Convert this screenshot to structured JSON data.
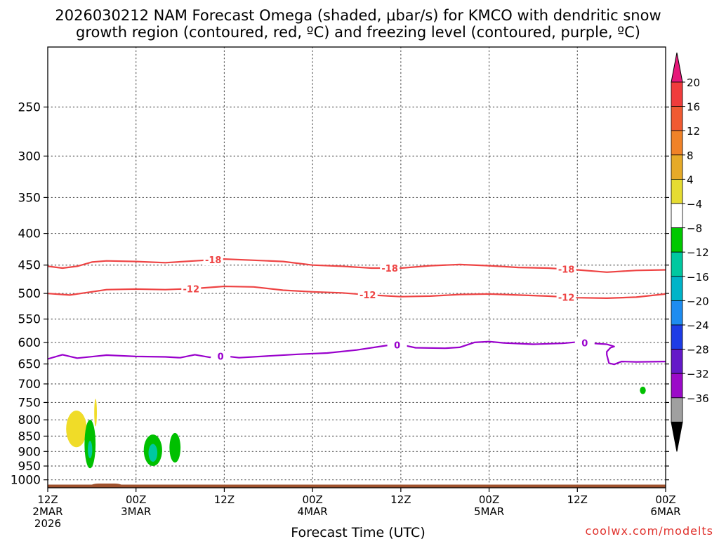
{
  "chart_data": {
    "type": "time-height contour/shaded",
    "title_line1": "2026030212 NAM Forecast Omega (shaded, μbar/s) for KMCO with dendritic snow",
    "title_line2": "growth region (contoured, red, ºC) and freezing level (contoured, purple, ºC)",
    "xlabel": "Forecast Time (UTC)",
    "watermark": "coolwx.com/modelts",
    "y_axis": {
      "units": "hPa",
      "scale": "log-pressure",
      "range": [
        1030,
        200
      ],
      "ticks": [
        250,
        300,
        350,
        400,
        450,
        500,
        550,
        600,
        650,
        700,
        750,
        800,
        850,
        900,
        950,
        1000
      ]
    },
    "x_axis": {
      "units": "forecast hour",
      "range": [
        0,
        84
      ],
      "ticks": [
        {
          "hour": 0,
          "line1": "12Z",
          "line2": "2MAR",
          "line3": "2026"
        },
        {
          "hour": 12,
          "line1": "00Z",
          "line2": "3MAR",
          "line3": ""
        },
        {
          "hour": 24,
          "line1": "12Z",
          "line2": "",
          "line3": ""
        },
        {
          "hour": 36,
          "line1": "00Z",
          "line2": "4MAR",
          "line3": ""
        },
        {
          "hour": 48,
          "line1": "12Z",
          "line2": "",
          "line3": ""
        },
        {
          "hour": 60,
          "line1": "00Z",
          "line2": "5MAR",
          "line3": ""
        },
        {
          "hour": 72,
          "line1": "12Z",
          "line2": "",
          "line3": ""
        },
        {
          "hour": 84,
          "line1": "00Z",
          "line2": "6MAR",
          "line3": ""
        }
      ]
    },
    "contours": [
      {
        "name": "temperature -18C",
        "label": "-18",
        "color": "#ee4444",
        "label_hours": [
          22.5,
          46.5,
          70.5
        ],
        "points": [
          [
            0,
            452
          ],
          [
            2,
            455
          ],
          [
            4,
            452
          ],
          [
            6,
            445
          ],
          [
            8,
            443
          ],
          [
            12,
            444
          ],
          [
            16,
            446
          ],
          [
            20,
            443
          ],
          [
            24,
            440
          ],
          [
            28,
            442
          ],
          [
            32,
            444
          ],
          [
            36,
            450
          ],
          [
            40,
            452
          ],
          [
            44,
            455
          ],
          [
            48,
            455
          ],
          [
            52,
            451
          ],
          [
            56,
            449
          ],
          [
            60,
            451
          ],
          [
            64,
            454
          ],
          [
            68,
            455
          ],
          [
            72,
            458
          ],
          [
            76,
            462
          ],
          [
            80,
            459
          ],
          [
            84,
            458
          ]
        ]
      },
      {
        "name": "temperature -12C",
        "label": "-12",
        "color": "#ee4444",
        "label_hours": [
          19.5,
          43.5,
          70.5
        ],
        "points": [
          [
            0,
            500
          ],
          [
            3,
            503
          ],
          [
            5,
            499
          ],
          [
            8,
            493
          ],
          [
            12,
            492
          ],
          [
            16,
            493
          ],
          [
            20,
            491
          ],
          [
            24,
            487
          ],
          [
            28,
            488
          ],
          [
            32,
            494
          ],
          [
            36,
            497
          ],
          [
            40,
            499
          ],
          [
            44,
            503
          ],
          [
            48,
            506
          ],
          [
            52,
            505
          ],
          [
            56,
            502
          ],
          [
            60,
            501
          ],
          [
            64,
            503
          ],
          [
            68,
            505
          ],
          [
            72,
            508
          ],
          [
            76,
            509
          ],
          [
            80,
            507
          ],
          [
            84,
            501
          ]
        ]
      },
      {
        "name": "freezing level 0C",
        "label": "0",
        "color": "#9900cc",
        "label_hours": [
          23.5,
          47.5,
          73.0
        ],
        "points": [
          [
            0,
            638
          ],
          [
            2,
            628
          ],
          [
            4,
            636
          ],
          [
            8,
            629
          ],
          [
            12,
            632
          ],
          [
            16,
            633
          ],
          [
            18,
            635
          ],
          [
            20,
            628
          ],
          [
            22,
            634
          ],
          [
            24,
            631
          ],
          [
            26,
            635
          ],
          [
            30,
            631
          ],
          [
            34,
            627
          ],
          [
            38,
            624
          ],
          [
            42,
            617
          ],
          [
            46,
            607
          ],
          [
            48,
            605
          ],
          [
            50,
            612
          ],
          [
            54,
            613
          ],
          [
            56,
            611
          ],
          [
            58,
            600
          ],
          [
            60,
            598
          ],
          [
            62,
            601
          ],
          [
            66,
            604
          ],
          [
            70,
            602
          ],
          [
            72,
            599
          ],
          [
            74,
            602
          ],
          [
            76,
            604
          ],
          [
            77,
            609
          ],
          [
            76.5,
            612
          ],
          [
            76,
            621
          ],
          [
            76,
            628
          ],
          [
            76.3,
            648
          ],
          [
            77,
            651
          ],
          [
            78,
            644
          ],
          [
            80,
            645
          ],
          [
            84,
            644
          ]
        ]
      }
    ],
    "omega_areas": [
      {
        "color": "#f0dc28",
        "hour": 3.9,
        "p": 818,
        "dh": 1.4,
        "dp_top": 45,
        "dp_bot": 68
      },
      {
        "color": "#f0dc28",
        "hour": 6.5,
        "p": 790,
        "dh": 0.18,
        "dp_top": 50,
        "dp_bot": 30
      },
      {
        "color": "#00c000",
        "hour": 5.75,
        "p": 898,
        "dh": 0.75,
        "dp_top": 98,
        "dp_bot": 60
      },
      {
        "color": "#00c8a0",
        "hour": 5.75,
        "p": 893,
        "dh": 0.3,
        "dp_top": 28,
        "dp_bot": 30
      },
      {
        "color": "#00c000",
        "hour": 14.3,
        "p": 900,
        "dh": 1.25,
        "dp_top": 55,
        "dp_bot": 50
      },
      {
        "color": "#00c8a0",
        "hour": 14.3,
        "p": 905,
        "dh": 0.6,
        "dp_top": 30,
        "dp_bot": 30
      },
      {
        "color": "#00c000",
        "hour": 17.3,
        "p": 880,
        "dh": 0.75,
        "dp_top": 40,
        "dp_bot": 58
      },
      {
        "color": "#00c000",
        "hour": 80.9,
        "p": 717,
        "dh": 0.4,
        "dp_top": 10,
        "dp_bot": 10
      }
    ],
    "ground": {
      "color": "#a0522d",
      "base_hpa": 1030,
      "top_hpa": 1018,
      "bump_hpa": 1014,
      "bump_hours": [
        6,
        10
      ]
    },
    "colorbar": {
      "values": [
        "20",
        "16",
        "12",
        "8",
        "4",
        "−4",
        "−8",
        "−12",
        "−16",
        "−20",
        "−24",
        "−28",
        "−32",
        "−36"
      ],
      "colors": [
        "#f03c3c",
        "#f05a32",
        "#f08228",
        "#e6aa28",
        "#e6dc32",
        "#ffffff",
        "#00c800",
        "#00c8a0",
        "#00b4c8",
        "#1e8cf0",
        "#1e3ce6",
        "#6419c8",
        "#9b0ac8",
        "#a0a0a0"
      ],
      "top_arrow_color": "#e6187a",
      "bottom_arrow_color": "#000000"
    }
  }
}
